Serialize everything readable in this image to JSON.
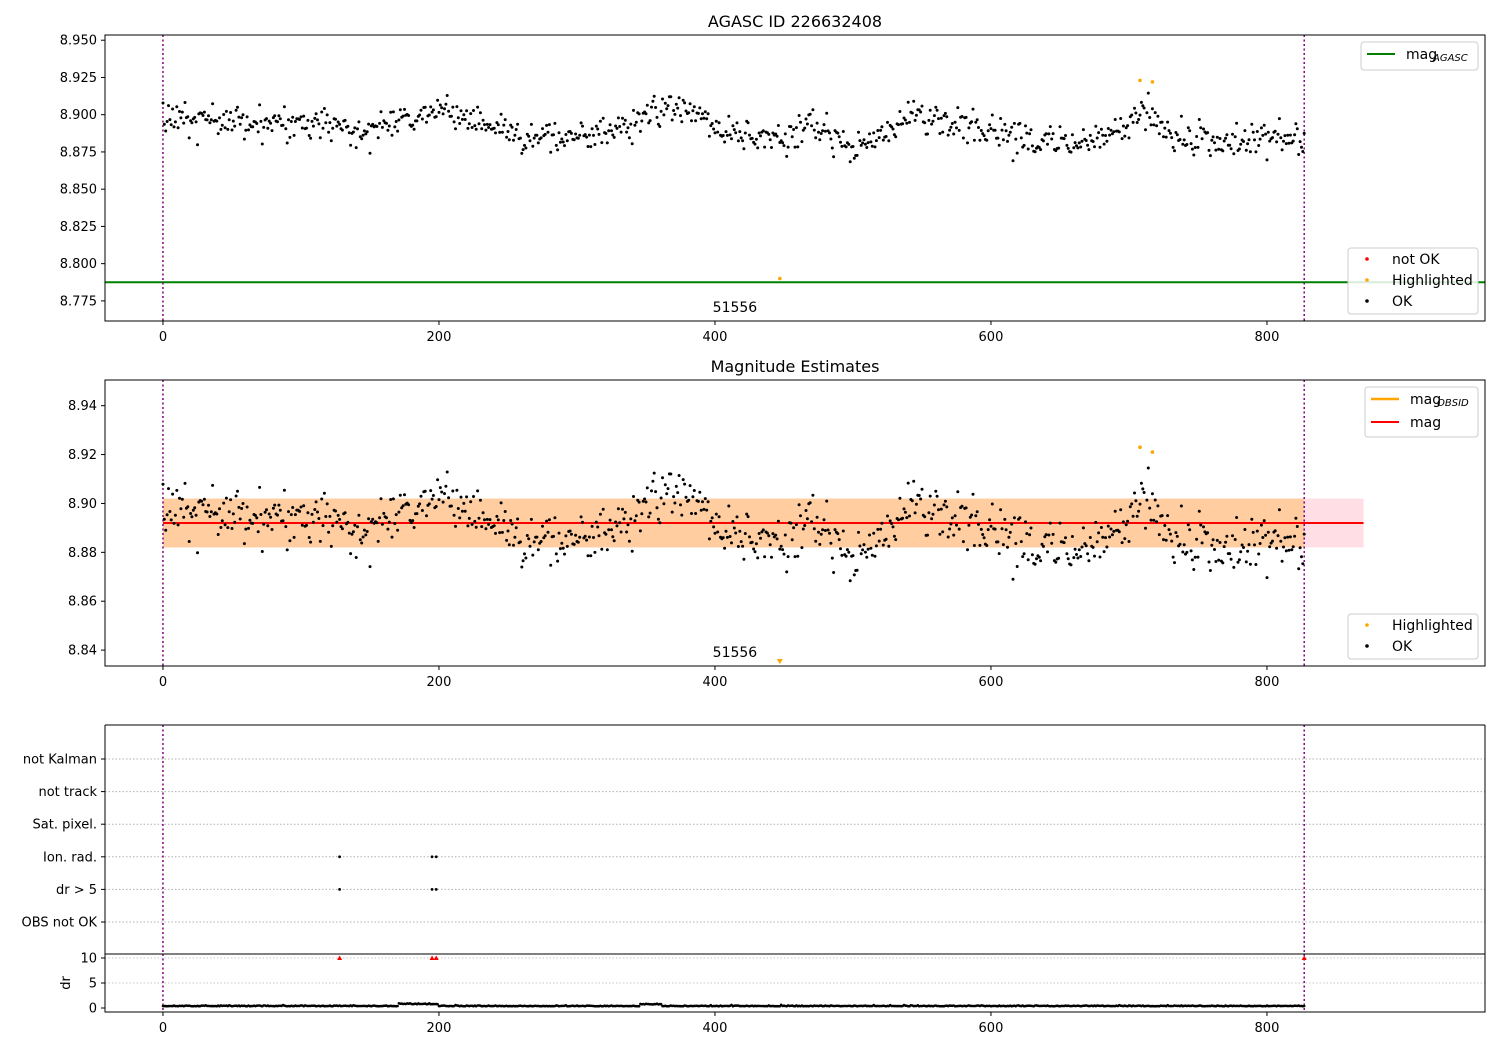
{
  "chart_data": [
    {
      "id": "agasc-panel",
      "type": "scatter",
      "title": "AGASC ID 226632408",
      "xlim": [
        -42,
        958
      ],
      "ylim": [
        8.7615,
        8.9535
      ],
      "xticks": [
        0,
        200,
        400,
        600,
        800
      ],
      "yticks": [
        8.775,
        8.8,
        8.825,
        8.85,
        8.875,
        8.9,
        8.925,
        8.95
      ],
      "ytick_labels": [
        "8.775",
        "8.800",
        "8.825",
        "8.850",
        "8.875",
        "8.900",
        "8.925",
        "8.950"
      ],
      "vlines": [
        0,
        827
      ],
      "hlines": [
        {
          "y": 8.7875,
          "color": "#008000",
          "label": "mag",
          "label_sub": "AGASC"
        }
      ],
      "annotation": {
        "text": "51556",
        "x": 400,
        "y": 8.766
      },
      "highlighted_points": [
        {
          "x": 447,
          "y": 8.79
        },
        {
          "x": 708,
          "y": 8.923
        },
        {
          "x": 717,
          "y": 8.922
        }
      ],
      "series_legend": [
        {
          "label": "not OK",
          "color": "#ff0000"
        },
        {
          "label": "Highlighted",
          "color": "#ffa500"
        },
        {
          "label": "OK",
          "color": "#000000"
        }
      ],
      "legend_position": "top-right / bottom-right"
    },
    {
      "id": "estimates-panel",
      "type": "scatter",
      "title": "Magnitude Estimates",
      "xlim": [
        -42,
        958
      ],
      "ylim": [
        8.8335,
        8.9505
      ],
      "xticks": [
        0,
        200,
        400,
        600,
        800
      ],
      "yticks": [
        8.84,
        8.86,
        8.88,
        8.9,
        8.92,
        8.94
      ],
      "ytick_labels": [
        "8.84",
        "8.86",
        "8.88",
        "8.90",
        "8.92",
        "8.94"
      ],
      "vlines": [
        0,
        827
      ],
      "mag_line": {
        "y": 8.892,
        "x_range": [
          0,
          870
        ],
        "color": "#ff0000",
        "label": "mag"
      },
      "band_pink": {
        "y_range": [
          8.882,
          8.902
        ],
        "x_range": [
          0,
          870
        ]
      },
      "band_orange": {
        "y_range": [
          8.882,
          8.902
        ],
        "x_range": [
          0,
          827
        ]
      },
      "obsid_label": {
        "label": "mag",
        "label_sub": "OBSID",
        "color": "#ffa500"
      },
      "annotation": {
        "text": "51556",
        "x": 400,
        "y": 8.837
      },
      "highlighted_points": [
        {
          "x": 447,
          "y": 8.835
        },
        {
          "x": 708,
          "y": 8.923
        },
        {
          "x": 717,
          "y": 8.921
        }
      ],
      "series_legend": [
        {
          "label": "Highlighted",
          "color": "#ffa500"
        },
        {
          "label": "OK",
          "color": "#000000"
        }
      ],
      "legend_position": "top-right / bottom-right"
    },
    {
      "id": "flags-panel",
      "type": "scatter",
      "xlim": [
        -42,
        958
      ],
      "xticks": [
        0,
        200,
        400,
        600,
        800
      ],
      "categories": [
        "not Kalman",
        "not track",
        "Sat. pixel.",
        "Ion. rad.",
        "dr > 5",
        "OBS not OK"
      ],
      "flag_points": [
        {
          "category": "Ion. rad.",
          "x": [
            128,
            195,
            198
          ]
        },
        {
          "category": "dr > 5",
          "x": [
            128,
            195,
            198
          ]
        }
      ],
      "vlines": [
        0,
        827
      ]
    },
    {
      "id": "dr-panel",
      "type": "scatter",
      "ylabel": "dr",
      "xlim": [
        -42,
        958
      ],
      "ylim": [
        -0.8,
        10.8
      ],
      "yticks": [
        0,
        5,
        10
      ],
      "xticks": [
        0,
        200,
        400,
        600,
        800
      ],
      "dr_outliers": [
        {
          "x": 128,
          "y": 10
        },
        {
          "x": 195,
          "y": 10
        },
        {
          "x": 198,
          "y": 10
        },
        {
          "x": 827,
          "y": 10
        }
      ],
      "vlines": [
        0,
        827
      ]
    }
  ]
}
